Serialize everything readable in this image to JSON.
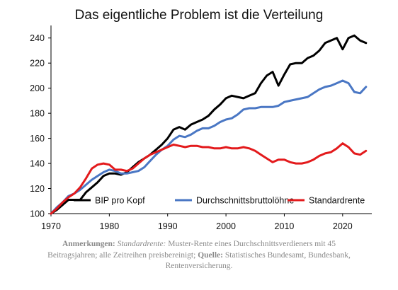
{
  "chart_data": {
    "type": "line",
    "title": "Das eigentliche Problem ist die Verteilung",
    "xlim": [
      1970,
      2025
    ],
    "ylim": [
      100,
      250
    ],
    "xticks": [
      "1970",
      "1980",
      "1990",
      "2000",
      "2010",
      "2020"
    ],
    "yticks": [
      "100",
      "120",
      "140",
      "160",
      "180",
      "200",
      "220",
      "240"
    ],
    "grid": false,
    "legend_position": "bottom-inside",
    "series": [
      {
        "name": "BIP pro Kopf",
        "color": "#000000",
        "x": [
          1970,
          1971,
          1972,
          1973,
          1974,
          1975,
          1976,
          1977,
          1978,
          1979,
          1980,
          1981,
          1982,
          1983,
          1984,
          1985,
          1986,
          1987,
          1988,
          1989,
          1990,
          1991,
          1992,
          1993,
          1994,
          1995,
          1996,
          1997,
          1998,
          1999,
          2000,
          2001,
          2002,
          2003,
          2004,
          2005,
          2006,
          2007,
          2008,
          2009,
          2010,
          2011,
          2012,
          2013,
          2014,
          2015,
          2016,
          2017,
          2018,
          2019,
          2020,
          2021,
          2022,
          2023,
          2024
        ],
        "values": [
          100,
          103,
          107,
          111,
          111,
          111,
          117,
          121,
          125,
          130,
          132,
          132,
          131,
          133,
          137,
          141,
          144,
          147,
          151,
          155,
          160,
          167,
          169,
          167,
          171,
          173,
          175,
          178,
          183,
          187,
          192,
          194,
          193,
          192,
          194,
          196,
          204,
          210,
          213,
          202,
          211,
          219,
          220,
          220,
          224,
          226,
          230,
          236,
          238,
          240,
          231,
          240,
          242,
          238,
          236
        ]
      },
      {
        "name": "Durchschnittsbruttolöhne",
        "color": "#4a77c4",
        "x": [
          1970,
          1971,
          1972,
          1973,
          1974,
          1975,
          1976,
          1977,
          1978,
          1979,
          1980,
          1981,
          1982,
          1983,
          1984,
          1985,
          1986,
          1987,
          1988,
          1989,
          1990,
          1991,
          1992,
          1993,
          1994,
          1995,
          1996,
          1997,
          1998,
          1999,
          2000,
          2001,
          2002,
          2003,
          2004,
          2005,
          2006,
          2007,
          2008,
          2009,
          2010,
          2011,
          2012,
          2013,
          2014,
          2015,
          2016,
          2017,
          2018,
          2019,
          2020,
          2021,
          2022,
          2023,
          2024
        ],
        "values": [
          100,
          105,
          109,
          114,
          116,
          119,
          123,
          127,
          130,
          133,
          135,
          134,
          132,
          132,
          133,
          134,
          137,
          142,
          147,
          151,
          154,
          159,
          162,
          161,
          163,
          166,
          168,
          168,
          170,
          173,
          175,
          176,
          179,
          183,
          184,
          184,
          185,
          185,
          185,
          186,
          189,
          190,
          191,
          192,
          193,
          196,
          199,
          201,
          202,
          204,
          206,
          204,
          197,
          196,
          201
        ]
      },
      {
        "name": "Standardrente",
        "color": "#e31a1c",
        "x": [
          1970,
          1971,
          1972,
          1973,
          1974,
          1975,
          1976,
          1977,
          1978,
          1979,
          1980,
          1981,
          1982,
          1983,
          1984,
          1985,
          1986,
          1987,
          1988,
          1989,
          1990,
          1991,
          1992,
          1993,
          1994,
          1995,
          1996,
          1997,
          1998,
          1999,
          2000,
          2001,
          2002,
          2003,
          2004,
          2005,
          2006,
          2007,
          2008,
          2009,
          2010,
          2011,
          2012,
          2013,
          2014,
          2015,
          2016,
          2017,
          2018,
          2019,
          2020,
          2021,
          2022,
          2023,
          2024
        ],
        "values": [
          100,
          104,
          109,
          113,
          116,
          121,
          128,
          136,
          139,
          140,
          139,
          135,
          135,
          134,
          136,
          140,
          144,
          147,
          149,
          151,
          153,
          155,
          154,
          153,
          154,
          154,
          153,
          153,
          152,
          152,
          153,
          152,
          152,
          153,
          152,
          150,
          147,
          144,
          141,
          143,
          143,
          141,
          140,
          140,
          141,
          143,
          146,
          148,
          149,
          152,
          156,
          153,
          148,
          147,
          150
        ]
      }
    ]
  },
  "note": {
    "label_anmerkungen": "Anmerkungen:",
    "standardrente_term": "Standardrente:",
    "text1": " Muster-Rente eines Durchschnittsverdieners mit 45 Beitragsjahren; alle Zeitreihen preisbereinigt;",
    "label_quelle": "Quelle:",
    "text2": " Statistisches Bundesamt, Bundesbank, Rentenversicherung."
  }
}
